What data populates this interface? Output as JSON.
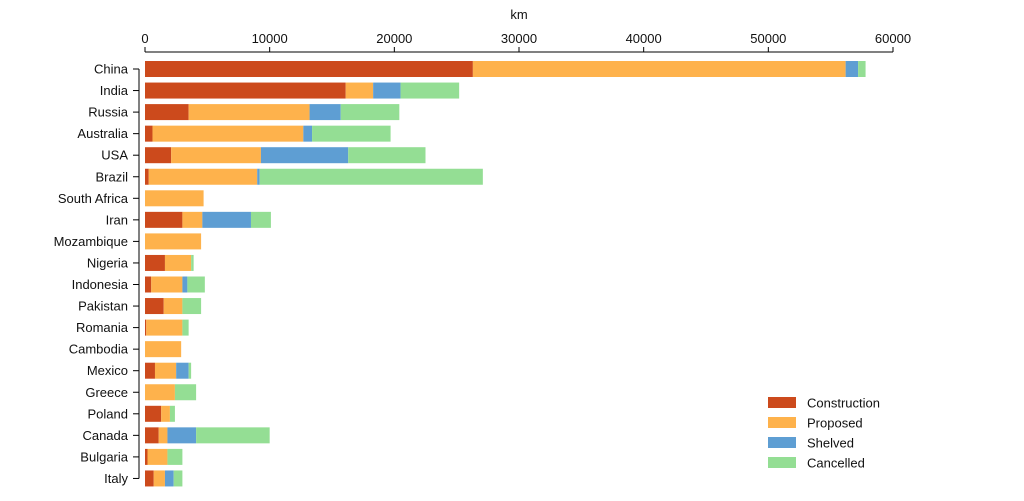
{
  "chart_data": {
    "type": "bar",
    "orientation": "horizontal",
    "stacked": true,
    "title": "",
    "xlabel": "km",
    "ylabel": "",
    "xlim": [
      0,
      60000
    ],
    "xticks": [
      0,
      10000,
      20000,
      30000,
      40000,
      50000,
      60000
    ],
    "x_axis_position": "top",
    "grid": false,
    "legend_position": "bottom-right",
    "categories": [
      "China",
      "India",
      "Russia",
      "Australia",
      "USA",
      "Brazil",
      "South Africa",
      "Iran",
      "Mozambique",
      "Nigeria",
      "Indonesia",
      "Pakistan",
      "Romania",
      "Cambodia",
      "Mexico",
      "Greece",
      "Poland",
      "Canada",
      "Bulgaria",
      "Italy"
    ],
    "series": [
      {
        "name": "Construction",
        "color": "#cc4a1c",
        "values": [
          26300,
          16100,
          3500,
          600,
          2100,
          300,
          0,
          3000,
          0,
          1600,
          500,
          1500,
          100,
          0,
          800,
          0,
          1300,
          1100,
          200,
          700
        ]
      },
      {
        "name": "Proposed",
        "color": "#feb24c",
        "values": [
          29900,
          2200,
          9700,
          12100,
          7200,
          8700,
          4700,
          1600,
          4500,
          2100,
          2500,
          1500,
          2900,
          2900,
          1700,
          2400,
          700,
          700,
          1600,
          900
        ]
      },
      {
        "name": "Shelved",
        "color": "#5e9ed3",
        "values": [
          1000,
          2200,
          2500,
          700,
          7000,
          200,
          0,
          3900,
          0,
          0,
          400,
          0,
          0,
          0,
          1000,
          0,
          0,
          2300,
          0,
          700
        ]
      },
      {
        "name": "Cancelled",
        "color": "#94de94",
        "values": [
          600,
          4700,
          4700,
          6300,
          6200,
          17900,
          0,
          1600,
          0,
          200,
          1400,
          1500,
          500,
          0,
          200,
          1700,
          400,
          5900,
          1200,
          700
        ]
      }
    ]
  }
}
